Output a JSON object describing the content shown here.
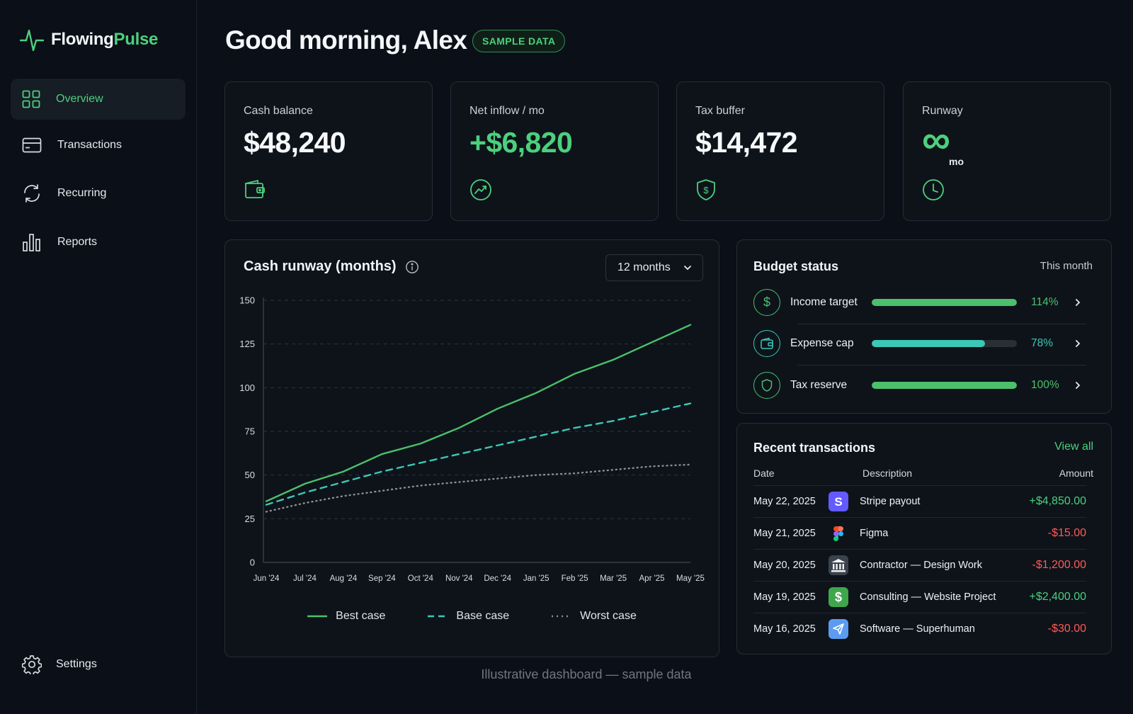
{
  "brand": {
    "name_part1": "Flowing",
    "name_part2": "Pulse",
    "accent": "#4cd07d"
  },
  "sidebar": {
    "items": [
      {
        "label": "Overview",
        "icon": "grid-icon",
        "active": true
      },
      {
        "label": "Transactions",
        "icon": "card-icon",
        "active": false
      },
      {
        "label": "Recurring",
        "icon": "refresh-icon",
        "active": false
      },
      {
        "label": "Reports",
        "icon": "bar-chart-icon",
        "active": false
      }
    ],
    "settings_label": "Settings"
  },
  "header": {
    "greeting": "Good morning, Alex",
    "badge": "SAMPLE DATA"
  },
  "stats": [
    {
      "label": "Cash balance",
      "value": "$48,240",
      "icon": "wallet-icon"
    },
    {
      "label": "Net inflow / mo",
      "value": "+$6,820",
      "icon": "trend-up-icon"
    },
    {
      "label": "Tax buffer",
      "value": "$14,472",
      "icon": "shield-dollar-icon"
    },
    {
      "label": "Runway",
      "value": "∞",
      "unit": "mo",
      "icon": "clock-icon"
    }
  ],
  "chart": {
    "title": "Cash runway (months)",
    "range_label": "12 months"
  },
  "chart_data": {
    "type": "line",
    "categories": [
      "Jun '24",
      "Jul '24",
      "Aug '24",
      "Sep '24",
      "Oct '24",
      "Nov '24",
      "Dec '24",
      "Jan '25",
      "Feb '25",
      "Mar '25",
      "Apr '25",
      "May '25"
    ],
    "series": [
      {
        "name": "Best case",
        "values": [
          35,
          45,
          52,
          62,
          68,
          77,
          88,
          97,
          108,
          116,
          126,
          136
        ],
        "color": "#4cc06c",
        "style": "solid"
      },
      {
        "name": "Base case",
        "values": [
          33,
          40,
          46,
          52,
          57,
          62,
          67,
          72,
          77,
          81,
          86,
          91
        ],
        "color": "#3cc8b6",
        "style": "dashed"
      },
      {
        "name": "Worst case",
        "values": [
          29,
          34,
          38,
          41,
          44,
          46,
          48,
          50,
          51,
          53,
          55,
          56
        ],
        "color": "#8a9096",
        "style": "dotted"
      }
    ],
    "yticks": [
      0,
      25,
      50,
      75,
      100,
      125,
      150
    ],
    "ylim": [
      0,
      150
    ],
    "grid": true,
    "legend_position": "bottom"
  },
  "budget": {
    "title": "Budget status",
    "period": "This month",
    "items": [
      {
        "label": "Income target",
        "pct_label": "114%",
        "fill": 1.0,
        "color": "#4cc06c",
        "icon": "dollar-icon"
      },
      {
        "label": "Expense cap",
        "pct_label": "78%",
        "fill": 0.78,
        "color": "#3cc8b6",
        "icon": "wallet-icon"
      },
      {
        "label": "Tax reserve",
        "pct_label": "100%",
        "fill": 1.0,
        "color": "#4cc06c",
        "icon": "shield-icon"
      }
    ]
  },
  "transactions": {
    "title": "Recent transactions",
    "view_all": "View all",
    "headers": {
      "date": "Date",
      "description": "Description",
      "amount": "Amount"
    },
    "rows": [
      {
        "date": "May 22, 2025",
        "description": "Stripe payout",
        "amount": "+$4,850.00",
        "positive": true,
        "logo": "stripe-logo-icon"
      },
      {
        "date": "May 21, 2025",
        "description": "Figma",
        "amount": "-$15.00",
        "positive": false,
        "logo": "figma-logo-icon"
      },
      {
        "date": "May 20, 2025",
        "description": "Contractor — Design Work",
        "amount": "-$1,200.00",
        "positive": false,
        "logo": "bank-icon"
      },
      {
        "date": "May 19, 2025",
        "description": "Consulting — Website Project",
        "amount": "+$2,400.00",
        "positive": true,
        "logo": "dollar-logo-icon"
      },
      {
        "date": "May 16, 2025",
        "description": "Software — Superhuman",
        "amount": "-$30.00",
        "positive": false,
        "logo": "send-icon"
      }
    ]
  },
  "footer": "Illustrative dashboard — sample data"
}
